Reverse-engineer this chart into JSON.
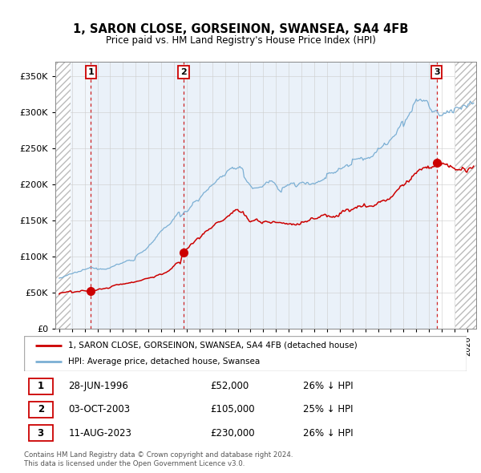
{
  "title": "1, SARON CLOSE, GORSEINON, SWANSEA, SA4 4FB",
  "subtitle": "Price paid vs. HM Land Registry's House Price Index (HPI)",
  "ylim": [
    0,
    370000
  ],
  "yticks": [
    0,
    50000,
    100000,
    150000,
    200000,
    250000,
    300000,
    350000
  ],
  "ytick_labels": [
    "£0",
    "£50K",
    "£100K",
    "£150K",
    "£200K",
    "£250K",
    "£300K",
    "£350K"
  ],
  "xlim_start": 1993.7,
  "xlim_end": 2026.7,
  "hatch_left_end": 1994.92,
  "hatch_right_start": 2025.08,
  "sales": [
    {
      "date_num": 1996.49,
      "price": 52000,
      "label": "1"
    },
    {
      "date_num": 2003.75,
      "price": 105000,
      "label": "2"
    },
    {
      "date_num": 2023.61,
      "price": 230000,
      "label": "3"
    }
  ],
  "sale_color": "#cc0000",
  "hpi_color": "#7bafd4",
  "legend_entries": [
    "1, SARON CLOSE, GORSEINON, SWANSEA, SA4 4FB (detached house)",
    "HPI: Average price, detached house, Swansea"
  ],
  "table_rows": [
    {
      "num": "1",
      "date": "28-JUN-1996",
      "price": "£52,000",
      "hpi": "26% ↓ HPI"
    },
    {
      "num": "2",
      "date": "03-OCT-2003",
      "price": "£105,000",
      "hpi": "25% ↓ HPI"
    },
    {
      "num": "3",
      "date": "11-AUG-2023",
      "price": "£230,000",
      "hpi": "26% ↓ HPI"
    }
  ],
  "footer": "Contains HM Land Registry data © Crown copyright and database right 2024.\nThis data is licensed under the Open Government Licence v3.0.",
  "grid_color": "#cccccc",
  "vline_color": "#cc0000",
  "label_box_color": "#cc0000",
  "shade_color": "#dce9f5"
}
